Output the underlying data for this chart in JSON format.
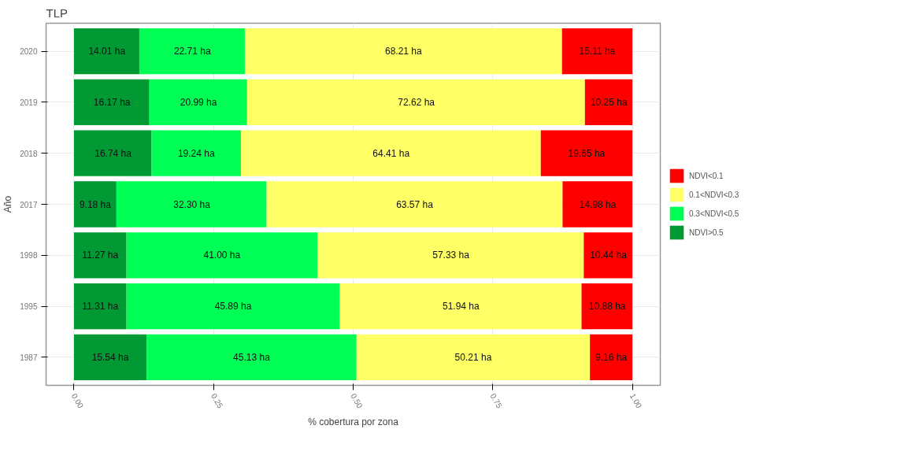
{
  "chart_data": {
    "type": "bar",
    "orientation": "horizontal",
    "stacked": true,
    "title": "TLP",
    "xlabel": "% cobertura por zona",
    "ylabel": "Año",
    "categories": [
      "2020",
      "2019",
      "2018",
      "2017",
      "1998",
      "1995",
      "1987"
    ],
    "series": [
      {
        "name": "NDVI>0.5",
        "color": "#009933",
        "values": [
          0.117,
          0.135,
          0.139,
          0.076,
          0.094,
          0.094,
          0.13
        ]
      },
      {
        "name": "0.3<NDVI<0.5",
        "color": "#00ff55",
        "values": [
          0.189,
          0.175,
          0.16,
          0.269,
          0.342,
          0.382,
          0.376
        ]
      },
      {
        "name": "0.1<NDVI<0.3",
        "color": "#ffff66",
        "values": [
          0.568,
          0.605,
          0.537,
          0.53,
          0.477,
          0.433,
          0.418
        ]
      },
      {
        "name": "NDVI<0.1",
        "color": "#ff0000",
        "values": [
          0.126,
          0.085,
          0.164,
          0.125,
          0.087,
          0.091,
          0.076
        ]
      }
    ],
    "annotations": [
      {
        "text": "14.01 ha",
        "x": 0.059,
        "y": "2020"
      },
      {
        "text": "22.71 ha",
        "x": 0.212,
        "y": "2020"
      },
      {
        "text": "68.21 ha",
        "x": 0.59,
        "y": "2020"
      },
      {
        "text": "15.11 ha",
        "x": 0.937,
        "y": "2020"
      },
      {
        "text": "16.17 ha",
        "x": 0.068,
        "y": "2019"
      },
      {
        "text": "20.99 ha",
        "x": 0.223,
        "y": "2019"
      },
      {
        "text": "72.62 ha",
        "x": 0.613,
        "y": "2019"
      },
      {
        "text": "10.25 ha",
        "x": 0.958,
        "y": "2019"
      },
      {
        "text": "16.74 ha",
        "x": 0.07,
        "y": "2018"
      },
      {
        "text": "19.24 ha",
        "x": 0.219,
        "y": "2018"
      },
      {
        "text": "64.41 ha",
        "x": 0.568,
        "y": "2018"
      },
      {
        "text": "19.65 ha",
        "x": 0.918,
        "y": "2018"
      },
      {
        "text": "9.18 ha",
        "x": 0.038,
        "y": "2017"
      },
      {
        "text": "32.30 ha",
        "x": 0.211,
        "y": "2017"
      },
      {
        "text": "63.57 ha",
        "x": 0.61,
        "y": "2017"
      },
      {
        "text": "14.98 ha",
        "x": 0.938,
        "y": "2017"
      },
      {
        "text": "11.27 ha",
        "x": 0.047,
        "y": "1998"
      },
      {
        "text": "41.00 ha",
        "x": 0.265,
        "y": "1998"
      },
      {
        "text": "57.33 ha",
        "x": 0.675,
        "y": "1998"
      },
      {
        "text": "10.44 ha",
        "x": 0.957,
        "y": "1998"
      },
      {
        "text": "11.31 ha",
        "x": 0.047,
        "y": "1995"
      },
      {
        "text": "45.89 ha",
        "x": 0.285,
        "y": "1995"
      },
      {
        "text": "51.94 ha",
        "x": 0.693,
        "y": "1995"
      },
      {
        "text": "10.88 ha",
        "x": 0.955,
        "y": "1995"
      },
      {
        "text": "15.54 ha",
        "x": 0.065,
        "y": "1987"
      },
      {
        "text": "45.13 ha",
        "x": 0.318,
        "y": "1987"
      },
      {
        "text": "50.21 ha",
        "x": 0.715,
        "y": "1987"
      },
      {
        "text": "9.16 ha",
        "x": 0.962,
        "y": "1987"
      }
    ],
    "xlim": [
      -0.05,
      1.05
    ],
    "xticks": [
      {
        "value": 0,
        "label": "0.00"
      },
      {
        "value": 0.25,
        "label": "0.25"
      },
      {
        "value": 0.5,
        "label": "0.50"
      },
      {
        "value": 0.75,
        "label": "0.75"
      },
      {
        "value": 1,
        "label": "1.00"
      }
    ],
    "grid": true,
    "legend": "right"
  }
}
